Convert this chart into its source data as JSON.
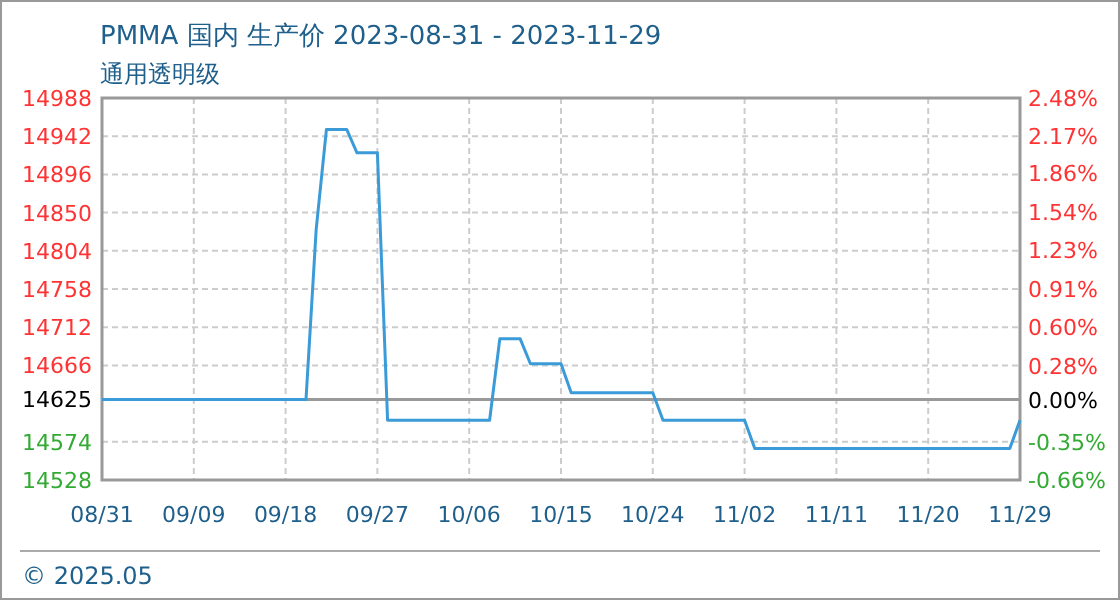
{
  "chart_data": {
    "type": "line",
    "title": "PMMA 国内 生产价 2023-08-31 - 2023-11-29",
    "subtitle": "通用透明级",
    "annotations": [
      "© 2025.05"
    ],
    "x": [
      "2023-08-31",
      "2023-09-19",
      "2023-09-20",
      "2023-09-21",
      "2023-09-22",
      "2023-09-24",
      "2023-09-25",
      "2023-09-27",
      "2023-09-28",
      "2023-10-08",
      "2023-10-09",
      "2023-10-11",
      "2023-10-12",
      "2023-10-15",
      "2023-10-16",
      "2023-10-24",
      "2023-10-25",
      "2023-11-02",
      "2023-11-03",
      "2023-11-28",
      "2023-11-29"
    ],
    "series": [
      {
        "color": "#3b9bd8",
        "values": [
          14625,
          14625,
          14625,
          14830,
          14950,
          14950,
          14922,
          14922,
          14600,
          14600,
          14698,
          14698,
          14668,
          14668,
          14633,
          14633,
          14600,
          14600,
          14566,
          14566,
          14600
        ]
      }
    ],
    "xlim": [
      "2023-08-31",
      "2023-11-29"
    ],
    "xticks": [
      {
        "value": "2023-08-31",
        "label": "08/31"
      },
      {
        "value": "2023-09-09",
        "label": "09/09"
      },
      {
        "value": "2023-09-18",
        "label": "09/18"
      },
      {
        "value": "2023-09-27",
        "label": "09/27"
      },
      {
        "value": "2023-10-06",
        "label": "10/06"
      },
      {
        "value": "2023-10-15",
        "label": "10/15"
      },
      {
        "value": "2023-10-24",
        "label": "10/24"
      },
      {
        "value": "2023-11-02",
        "label": "11/02"
      },
      {
        "value": "2023-11-11",
        "label": "11/11"
      },
      {
        "value": "2023-11-20",
        "label": "11/20"
      },
      {
        "value": "2023-11-29",
        "label": "11/29"
      }
    ],
    "ylim": [
      14528,
      14988
    ],
    "yticks": [
      14528,
      14574,
      14625,
      14666,
      14712,
      14758,
      14804,
      14850,
      14896,
      14942,
      14988
    ],
    "y2lim": [
      -0.66,
      2.48
    ],
    "y2ticks": [
      {
        "value": -0.66,
        "label": "-0.66%"
      },
      {
        "value": -0.35,
        "label": "-0.35%"
      },
      {
        "value": 0,
        "label": "0.00%"
      },
      {
        "value": 0.28,
        "label": "0.28%"
      },
      {
        "value": 0.6,
        "label": "0.60%"
      },
      {
        "value": 0.91,
        "label": "0.91%"
      },
      {
        "value": 1.23,
        "label": "1.23%"
      },
      {
        "value": 1.54,
        "label": "1.54%"
      },
      {
        "value": 1.86,
        "label": "1.86%"
      },
      {
        "value": 2.17,
        "label": "2.17%"
      },
      {
        "value": 2.48,
        "label": "2.48%"
      }
    ],
    "ref_lines": [
      {
        "axis": "y",
        "value": 14625,
        "color": "#999999"
      }
    ],
    "grid": true,
    "marker": "none",
    "line_style": "solid"
  }
}
